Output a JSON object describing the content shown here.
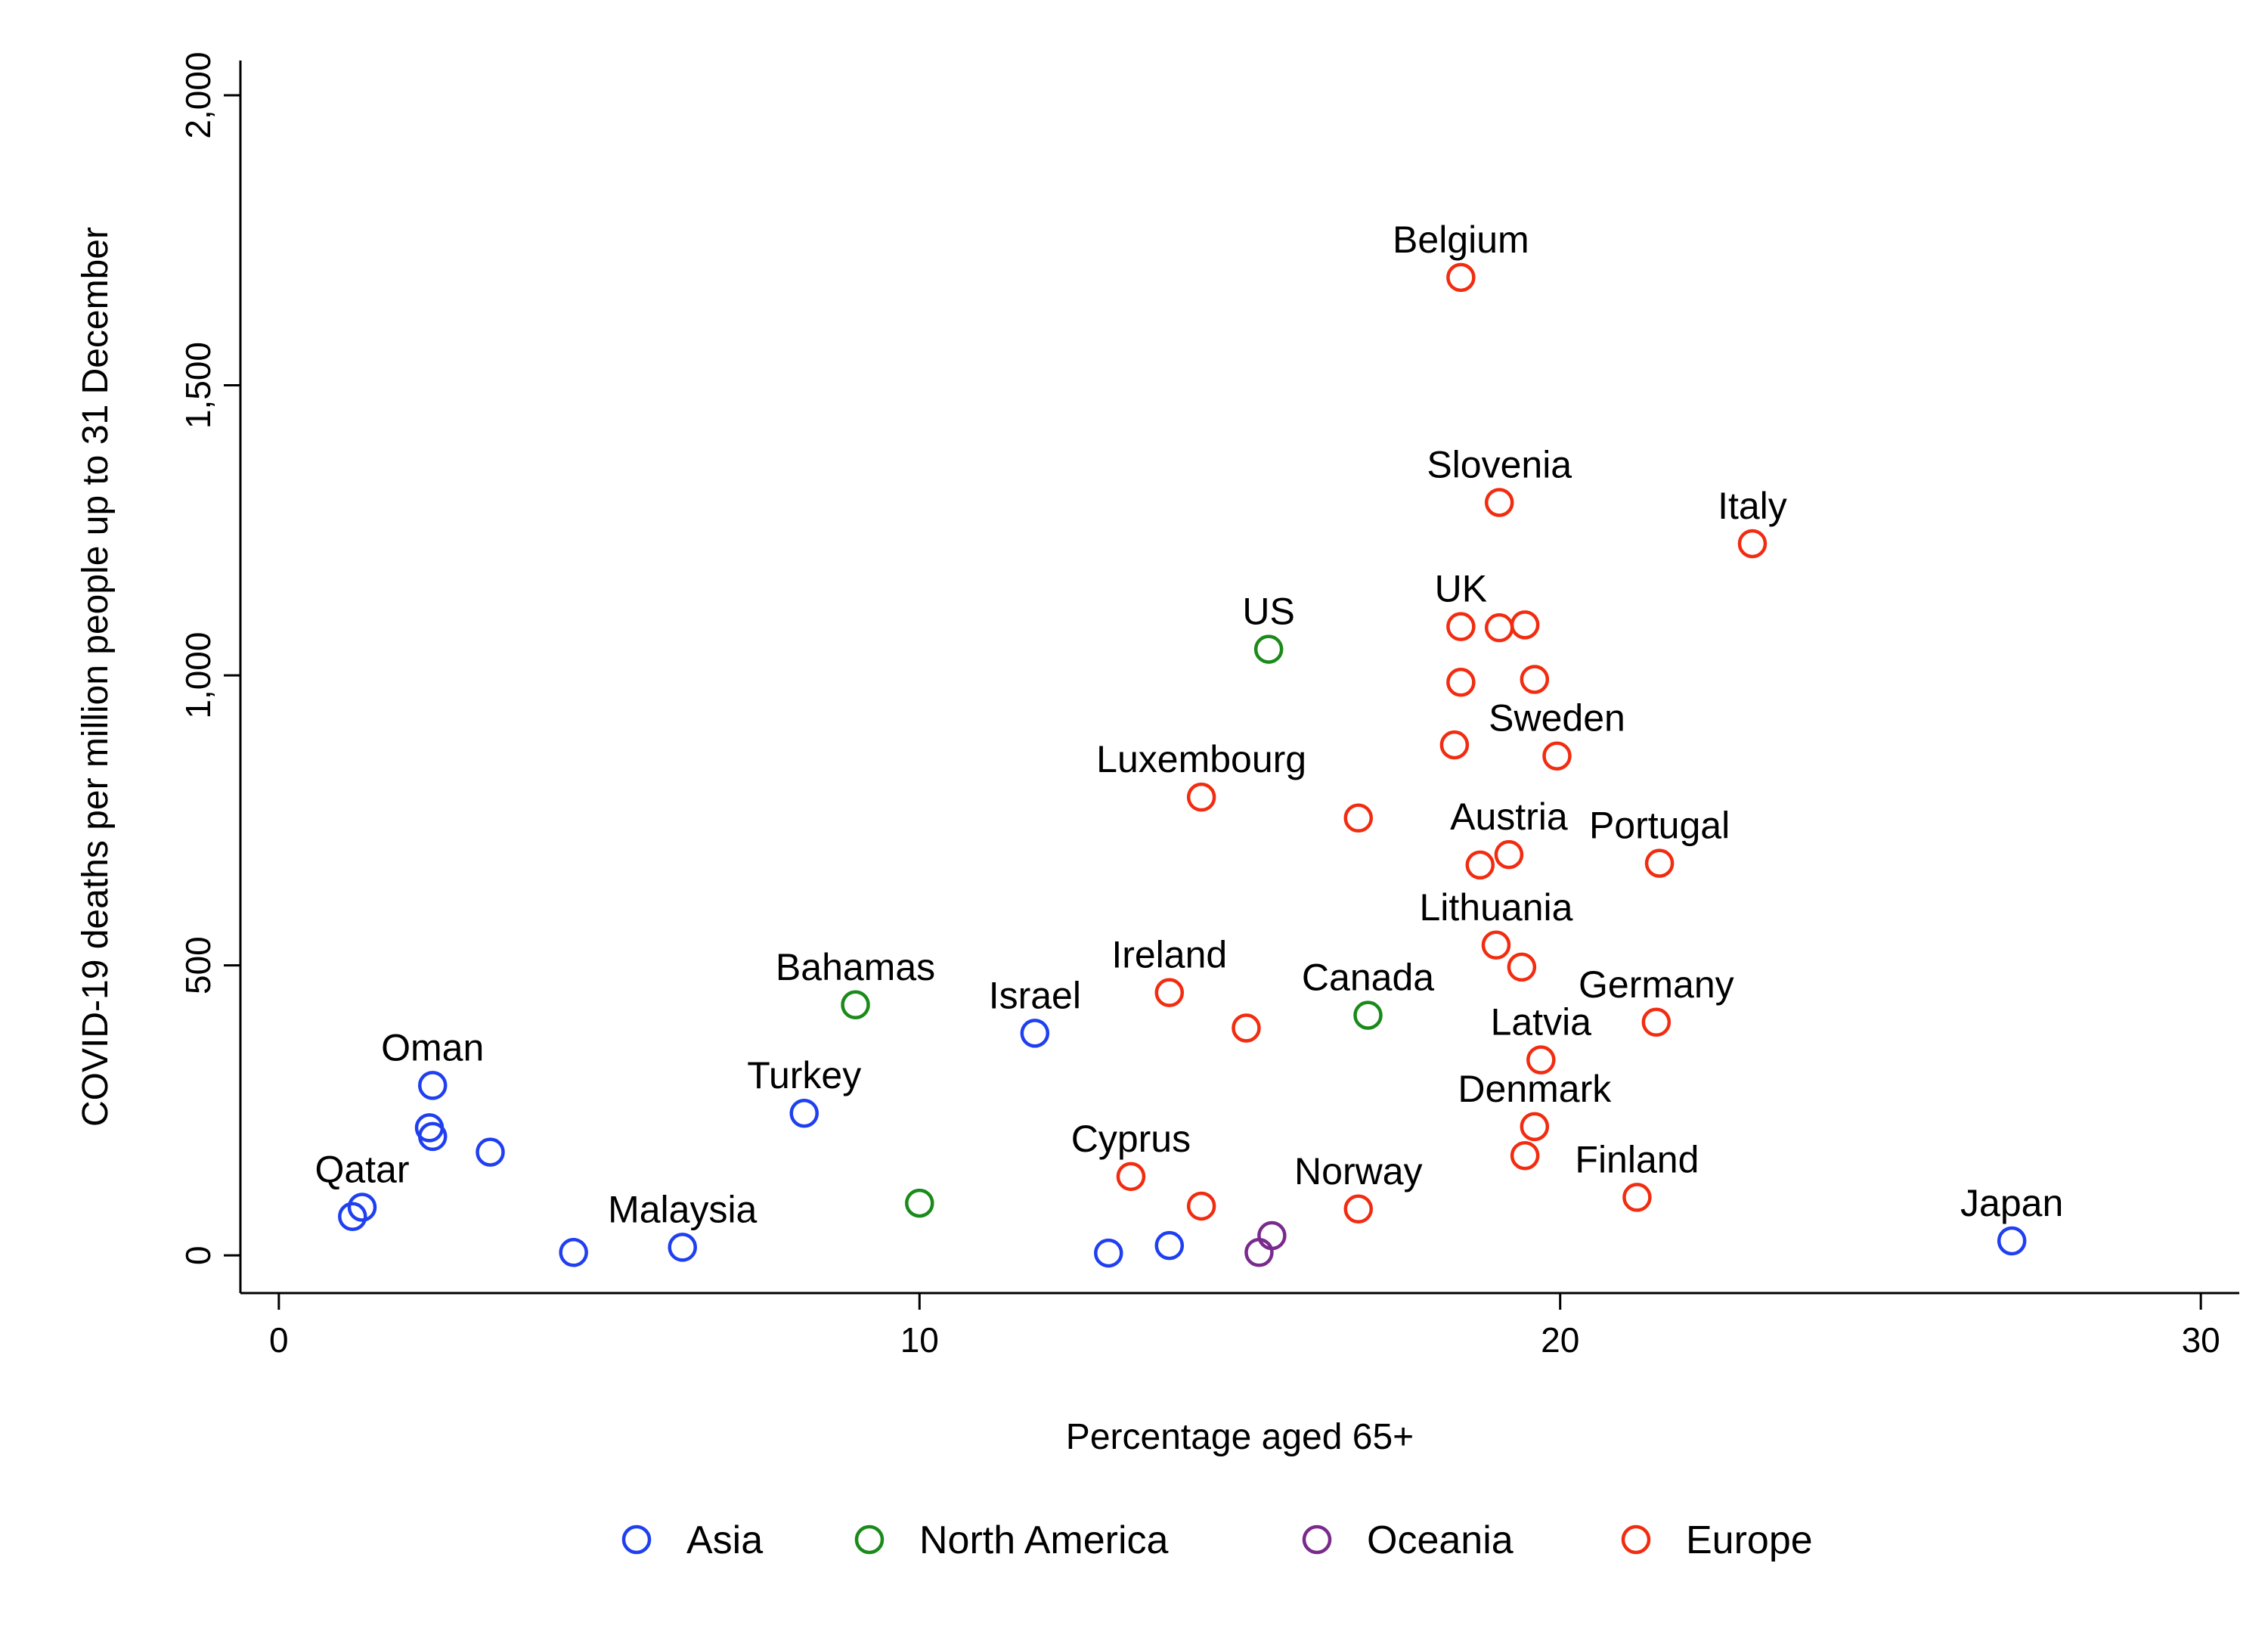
{
  "chart_data": {
    "type": "scatter",
    "title": "",
    "xlabel": "Percentage aged 65+",
    "ylabel": "COVID-19 deaths per million people up to 31 December",
    "xlim": [
      -0.6,
      30.6
    ],
    "ylim": [
      -65,
      2060
    ],
    "xticks": [
      0,
      10,
      20,
      30
    ],
    "xtick_labels": [
      "0",
      "10",
      "20",
      "30"
    ],
    "yticks": [
      0,
      500,
      1000,
      1500,
      2000
    ],
    "ytick_labels": [
      "0",
      "500",
      "1,000",
      "1,500",
      "2,000"
    ],
    "grid": false,
    "legend_position": "bottom",
    "series": [
      {
        "name": "Asia",
        "color": "#1f3ff0",
        "points": [
          {
            "x": 2.4,
            "y": 293,
            "label": "Oman"
          },
          {
            "x": 2.35,
            "y": 220,
            "label": ""
          },
          {
            "x": 2.4,
            "y": 205,
            "label": ""
          },
          {
            "x": 3.3,
            "y": 178,
            "label": ""
          },
          {
            "x": 1.3,
            "y": 83,
            "label": "Qatar"
          },
          {
            "x": 1.15,
            "y": 67,
            "label": ""
          },
          {
            "x": 4.6,
            "y": 5,
            "label": ""
          },
          {
            "x": 6.3,
            "y": 14,
            "label": "Malaysia"
          },
          {
            "x": 8.2,
            "y": 245,
            "label": "Turkey"
          },
          {
            "x": 11.8,
            "y": 383,
            "label": "Israel"
          },
          {
            "x": 12.95,
            "y": 4,
            "label": ""
          },
          {
            "x": 13.9,
            "y": 17,
            "label": ""
          },
          {
            "x": 27.05,
            "y": 25,
            "label": "Japan"
          }
        ]
      },
      {
        "name": "North America",
        "color": "#1a8a1a",
        "points": [
          {
            "x": 9.0,
            "y": 432,
            "label": "Bahamas"
          },
          {
            "x": 10.0,
            "y": 90,
            "label": ""
          },
          {
            "x": 15.45,
            "y": 1045,
            "label": "US"
          },
          {
            "x": 17.0,
            "y": 414,
            "label": "Canada"
          }
        ]
      },
      {
        "name": "Oceania",
        "color": "#7a2a8c",
        "points": [
          {
            "x": 15.5,
            "y": 34,
            "label": ""
          },
          {
            "x": 15.3,
            "y": 5,
            "label": ""
          }
        ]
      },
      {
        "name": "Europe",
        "color": "#f22c10",
        "points": [
          {
            "x": 18.45,
            "y": 1686,
            "label": "Belgium"
          },
          {
            "x": 19.05,
            "y": 1298,
            "label": "Slovenia"
          },
          {
            "x": 23.0,
            "y": 1227,
            "label": "Italy"
          },
          {
            "x": 18.45,
            "y": 1084,
            "label": "UK"
          },
          {
            "x": 19.05,
            "y": 1082,
            "label": ""
          },
          {
            "x": 19.45,
            "y": 1087,
            "label": ""
          },
          {
            "x": 18.45,
            "y": 988,
            "label": ""
          },
          {
            "x": 19.6,
            "y": 993,
            "label": ""
          },
          {
            "x": 18.35,
            "y": 880,
            "label": ""
          },
          {
            "x": 19.95,
            "y": 861,
            "label": "Sweden"
          },
          {
            "x": 14.4,
            "y": 790,
            "label": "Luxembourg"
          },
          {
            "x": 16.85,
            "y": 754,
            "label": ""
          },
          {
            "x": 19.2,
            "y": 691,
            "label": "Austria"
          },
          {
            "x": 18.75,
            "y": 673,
            "label": ""
          },
          {
            "x": 21.55,
            "y": 676,
            "label": "Portugal"
          },
          {
            "x": 19.0,
            "y": 535,
            "label": "Lithuania"
          },
          {
            "x": 19.4,
            "y": 497,
            "label": ""
          },
          {
            "x": 13.9,
            "y": 453,
            "label": "Ireland"
          },
          {
            "x": 15.1,
            "y": 392,
            "label": ""
          },
          {
            "x": 21.5,
            "y": 402,
            "label": "Germany"
          },
          {
            "x": 19.7,
            "y": 337,
            "label": "Latvia"
          },
          {
            "x": 19.6,
            "y": 222,
            "label": "Denmark"
          },
          {
            "x": 19.45,
            "y": 172,
            "label": ""
          },
          {
            "x": 13.3,
            "y": 136,
            "label": "Cyprus"
          },
          {
            "x": 14.4,
            "y": 85,
            "label": ""
          },
          {
            "x": 16.85,
            "y": 80,
            "label": "Norway"
          },
          {
            "x": 21.2,
            "y": 100,
            "label": "Finland"
          }
        ]
      }
    ]
  }
}
